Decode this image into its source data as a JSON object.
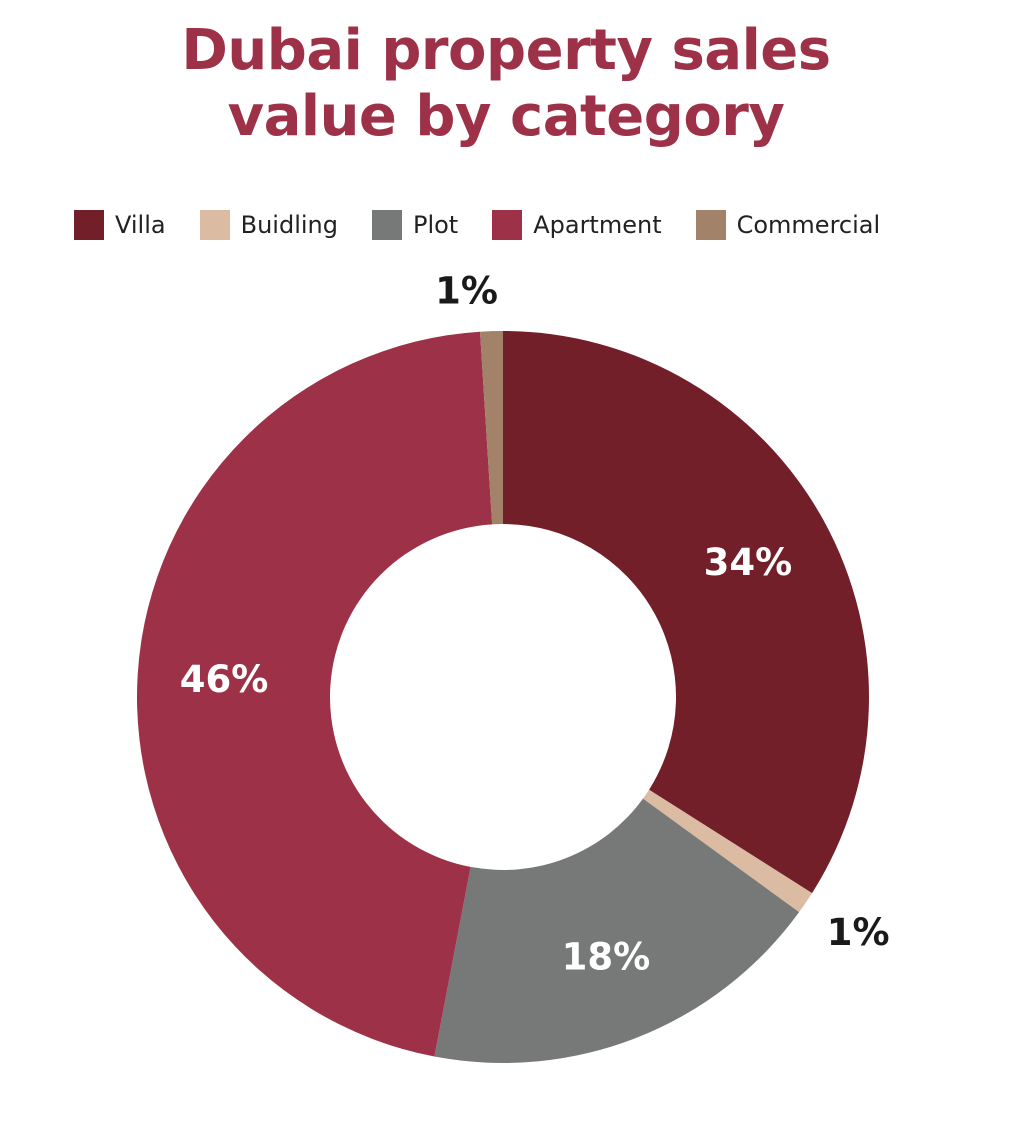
{
  "chart_data": {
    "type": "pie",
    "style": "donut",
    "title": "Dubai property sales value by category",
    "title_lines": [
      "Dubai property sales",
      "value by category"
    ],
    "legend_placement": "top",
    "series": [
      {
        "name": "Villa",
        "value": 34,
        "label": "34%",
        "color": "#731f29",
        "label_position": "inside"
      },
      {
        "name": "Buidling",
        "value": 1,
        "label": "1%",
        "color": "#dbbba1",
        "label_position": "outside"
      },
      {
        "name": "Plot",
        "value": 18,
        "label": "18%",
        "color": "#767977",
        "label_position": "inside"
      },
      {
        "name": "Apartment",
        "value": 46,
        "label": "46%",
        "color": "#9d3148",
        "label_position": "inside"
      },
      {
        "name": "Commercial",
        "value": 1,
        "label": "1%",
        "color": "#a3826a",
        "label_position": "outside"
      }
    ],
    "colors": {
      "title": "#9d3148",
      "inside_label": "#ffffff",
      "outside_label": "#1a1a1a"
    }
  }
}
